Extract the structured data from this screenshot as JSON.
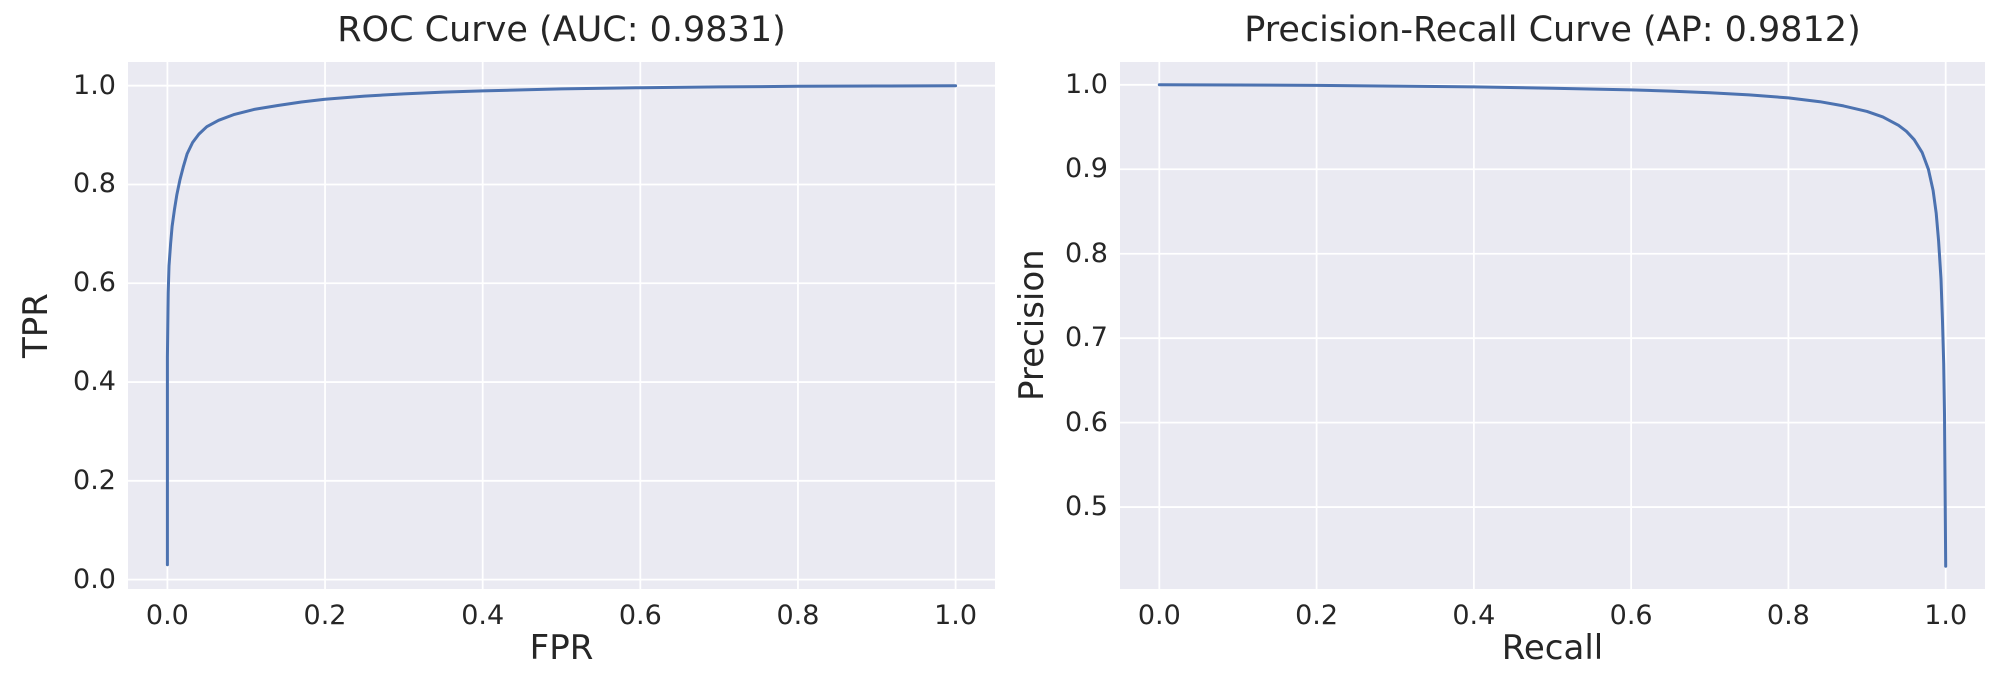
{
  "figure": {
    "background": "#ffffff",
    "text_color": "#262626",
    "plot_background": "#eaeaf2",
    "grid_color": "#ffffff",
    "accent_line_color": "#4c72b0"
  },
  "chart_data": [
    {
      "type": "line",
      "title": "ROC Curve (AUC: 0.9831)",
      "metric_name": "AUC",
      "metric_value": 0.9831,
      "xlabel": "FPR",
      "ylabel": "TPR",
      "xlim": [
        -0.05,
        1.05
      ],
      "ylim": [
        -0.019,
        1.048
      ],
      "xticks": [
        0.0,
        0.2,
        0.4,
        0.6,
        0.8,
        1.0
      ],
      "yticks": [
        0.0,
        0.2,
        0.4,
        0.6,
        0.8,
        1.0
      ],
      "grid": true,
      "legend": null,
      "series": [
        {
          "name": "ROC curve",
          "color": "#4c72b0",
          "x": [
            0,
            0,
            0.001,
            0.002,
            0.004,
            0.006,
            0.009,
            0.012,
            0.016,
            0.02,
            0.025,
            0.032,
            0.04,
            0.05,
            0.065,
            0.085,
            0.11,
            0.14,
            0.17,
            0.2,
            0.25,
            0.3,
            0.35,
            0.4,
            0.45,
            0.5,
            0.6,
            0.7,
            0.8,
            0.9,
            1
          ],
          "y": [
            0.03,
            0.45,
            0.58,
            0.635,
            0.68,
            0.715,
            0.75,
            0.78,
            0.81,
            0.835,
            0.862,
            0.885,
            0.902,
            0.917,
            0.93,
            0.942,
            0.952,
            0.96,
            0.967,
            0.9725,
            0.979,
            0.9835,
            0.987,
            0.9895,
            0.9915,
            0.9935,
            0.996,
            0.9975,
            0.9988,
            0.9995,
            1
          ]
        }
      ]
    },
    {
      "type": "line",
      "title": "Precision-Recall Curve (AP: 0.9812)",
      "metric_name": "AP",
      "metric_value": 0.9812,
      "xlabel": "Recall",
      "ylabel": "Precision",
      "xlim": [
        -0.05,
        1.05
      ],
      "ylim": [
        0.403,
        1.027
      ],
      "xticks": [
        0.0,
        0.2,
        0.4,
        0.6,
        0.8,
        1.0
      ],
      "yticks": [
        0.5,
        0.6,
        0.7,
        0.8,
        0.9,
        1.0
      ],
      "grid": true,
      "legend": null,
      "series": [
        {
          "name": "Precision-Recall curve",
          "color": "#4c72b0",
          "x": [
            0,
            0.1,
            0.2,
            0.3,
            0.4,
            0.5,
            0.6,
            0.65,
            0.7,
            0.75,
            0.8,
            0.84,
            0.87,
            0.9,
            0.92,
            0.94,
            0.95,
            0.96,
            0.97,
            0.978,
            0.984,
            0.988,
            0.991,
            0.994,
            0.996,
            0.9975,
            0.9985,
            0.9993,
            1
          ],
          "y": [
            1,
            0.9998,
            0.9993,
            0.9985,
            0.9975,
            0.996,
            0.994,
            0.9925,
            0.9905,
            0.988,
            0.9845,
            0.98,
            0.975,
            0.9685,
            0.962,
            0.952,
            0.945,
            0.935,
            0.92,
            0.9,
            0.875,
            0.848,
            0.815,
            0.77,
            0.72,
            0.67,
            0.61,
            0.52,
            0.43
          ]
        }
      ]
    }
  ]
}
